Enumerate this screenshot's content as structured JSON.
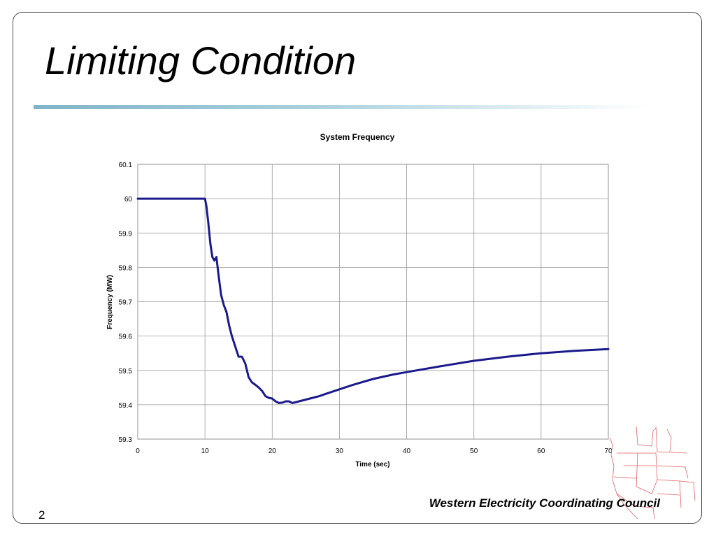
{
  "slide": {
    "title": "Limiting Condition",
    "footer": "Western Electricity Coordinating Council",
    "page_number": "2"
  },
  "colors": {
    "series": "#1a1a8c",
    "rule_start": "#7fb4c8",
    "map_lines": "#e06060"
  },
  "chart_data": {
    "type": "line",
    "title": "System Frequency",
    "xlabel": "Time (sec)",
    "ylabel": "Frequency (MW)",
    "xlim": [
      0,
      70
    ],
    "ylim": [
      59.3,
      60.1
    ],
    "xticks": [
      0,
      10,
      20,
      30,
      40,
      50,
      60,
      70
    ],
    "yticks": [
      59.3,
      59.4,
      59.5,
      59.6,
      59.7,
      59.8,
      59.9,
      60,
      60.1
    ],
    "xtick_labels": [
      "0",
      "10",
      "20",
      "30",
      "40",
      "50",
      "60",
      "70"
    ],
    "ytick_labels": [
      "59.3",
      "59.4",
      "59.5",
      "59.6",
      "59.7",
      "59.8",
      "59.9",
      "60",
      "60.1"
    ],
    "grid": true,
    "legend": "none",
    "series": [
      {
        "x": [
          0,
          5,
          10,
          10.2,
          10.5,
          10.8,
          11.1,
          11.4,
          11.7,
          12.0,
          12.4,
          12.8,
          13.2,
          13.6,
          14.0,
          14.5,
          15.0,
          15.5,
          16.0,
          16.5,
          17.0,
          17.5,
          18.0,
          18.5,
          19.0,
          19.5,
          20.0,
          20.5,
          21.0,
          21.5,
          22.0,
          22.5,
          23.0,
          24.0,
          25.0,
          26.0,
          27.0,
          28.0,
          30.0,
          32.0,
          35.0,
          38.0,
          40.0,
          45.0,
          50.0,
          55.0,
          60.0,
          65.0,
          70.0
        ],
        "y": [
          60.0,
          60.0,
          60.0,
          59.98,
          59.93,
          59.87,
          59.83,
          59.82,
          59.83,
          59.78,
          59.72,
          59.69,
          59.67,
          59.63,
          59.6,
          59.57,
          59.54,
          59.54,
          59.52,
          59.48,
          59.465,
          59.458,
          59.45,
          59.44,
          59.425,
          59.42,
          59.418,
          59.41,
          59.405,
          59.406,
          59.41,
          59.41,
          59.405,
          59.41,
          59.415,
          59.42,
          59.425,
          59.432,
          59.445,
          59.458,
          59.475,
          59.488,
          59.495,
          59.512,
          59.528,
          59.54,
          59.55,
          59.557,
          59.562
        ]
      }
    ]
  }
}
